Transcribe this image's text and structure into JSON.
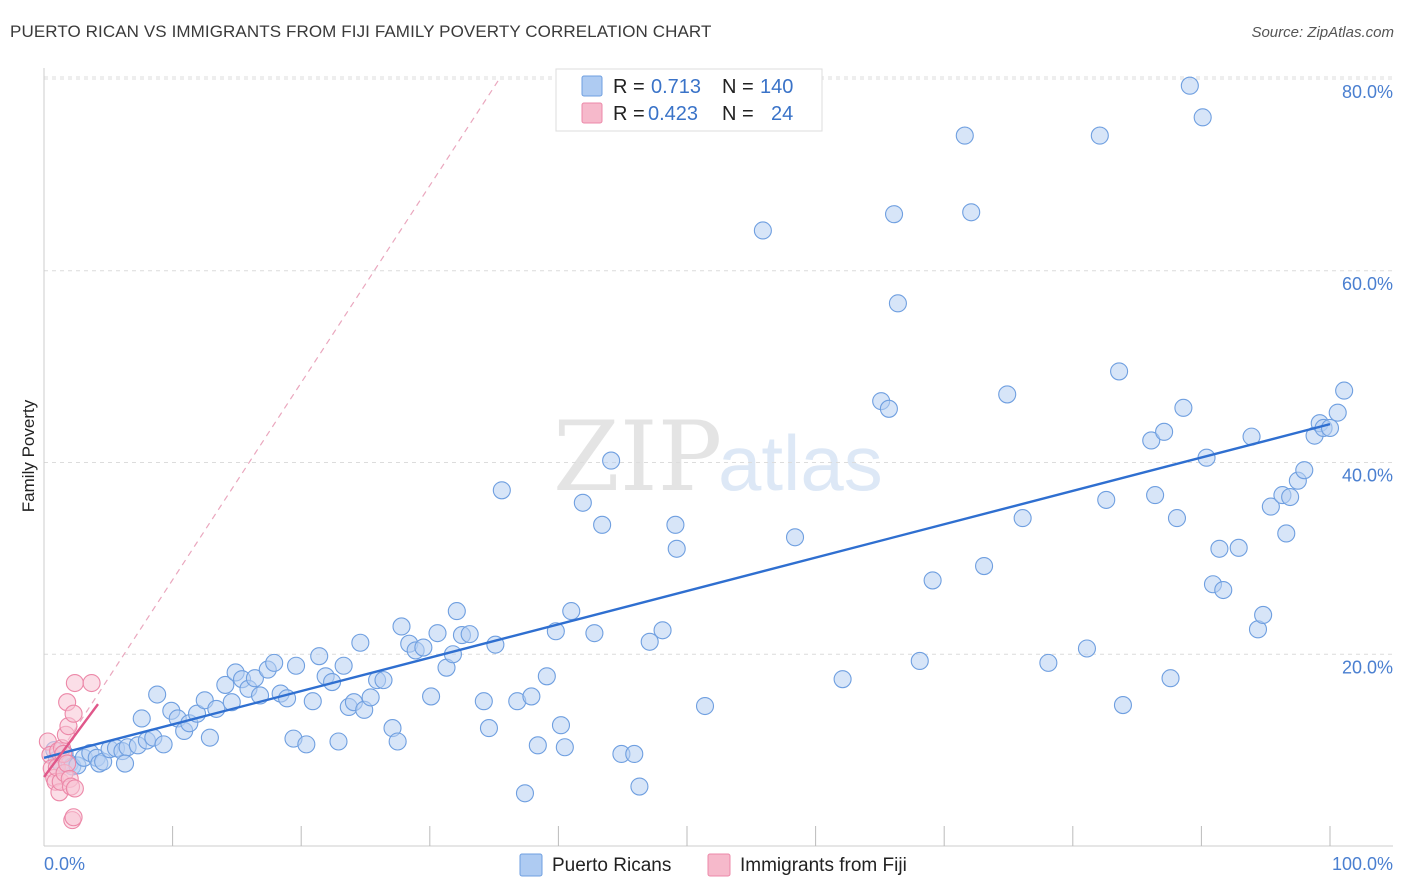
{
  "title": "PUERTO RICAN VS IMMIGRANTS FROM FIJI FAMILY POVERTY CORRELATION CHART",
  "source": "Source: ZipAtlas.com",
  "watermark": {
    "zip": "ZIP",
    "atlas": "atlas"
  },
  "legend_top": [
    {
      "r_label": "R =",
      "r_value": "0.713",
      "n_label": "N =",
      "n_value": "140",
      "color": "#aecbf2"
    },
    {
      "r_label": "R =",
      "r_value": "0.423",
      "n_label": "N =",
      "n_value": "24",
      "color": "#f6b9cb"
    }
  ],
  "chart_data": {
    "type": "scatter",
    "title": "PUERTO RICAN VS IMMIGRANTS FROM FIJI FAMILY POVERTY CORRELATION CHART",
    "xlabel": "",
    "ylabel": "Family Poverty",
    "xlim": [
      0,
      100
    ],
    "ylim": [
      0,
      82
    ],
    "x_tick_labels": [
      "0.0%",
      "100.0%"
    ],
    "y_ticks": [
      20,
      40,
      60,
      80
    ],
    "y_tick_labels": [
      "20.0%",
      "40.0%",
      "60.0%",
      "80.0%"
    ],
    "series": [
      {
        "name": "Puerto Ricans",
        "color": "#6f9fe0",
        "fill": "#b6cff2",
        "line_color": "#2f6fd0",
        "trend": {
          "x0": 0,
          "y0": 9.2,
          "x1": 100,
          "y1": 44.0
        },
        "points": [
          [
            0.8,
            10.0
          ],
          [
            1.0,
            9.0
          ],
          [
            1.3,
            8.6
          ],
          [
            1.6,
            9.6
          ],
          [
            2.0,
            8.6
          ],
          [
            2.2,
            8.3
          ],
          [
            2.6,
            8.4
          ],
          [
            3.1,
            9.2
          ],
          [
            3.6,
            9.7
          ],
          [
            4.1,
            9.2
          ],
          [
            4.3,
            8.6
          ],
          [
            4.6,
            8.8
          ],
          [
            5.1,
            10.1
          ],
          [
            5.6,
            10.2
          ],
          [
            6.1,
            9.9
          ],
          [
            6.5,
            10.3
          ],
          [
            6.3,
            8.6
          ],
          [
            7.3,
            10.5
          ],
          [
            7.6,
            13.3
          ],
          [
            8.0,
            11.0
          ],
          [
            8.5,
            11.3
          ],
          [
            8.8,
            15.8
          ],
          [
            9.3,
            10.6
          ],
          [
            9.9,
            14.1
          ],
          [
            10.4,
            13.3
          ],
          [
            10.9,
            12.0
          ],
          [
            11.3,
            12.8
          ],
          [
            11.9,
            13.8
          ],
          [
            12.5,
            15.2
          ],
          [
            12.9,
            11.3
          ],
          [
            13.4,
            14.3
          ],
          [
            14.1,
            16.8
          ],
          [
            14.6,
            15.0
          ],
          [
            14.9,
            18.1
          ],
          [
            15.4,
            17.4
          ],
          [
            15.9,
            16.4
          ],
          [
            16.4,
            17.5
          ],
          [
            16.8,
            15.7
          ],
          [
            17.4,
            18.4
          ],
          [
            17.9,
            19.1
          ],
          [
            18.4,
            15.9
          ],
          [
            18.9,
            15.4
          ],
          [
            19.4,
            11.2
          ],
          [
            19.6,
            18.8
          ],
          [
            20.4,
            10.6
          ],
          [
            20.9,
            15.1
          ],
          [
            21.4,
            19.8
          ],
          [
            21.9,
            17.7
          ],
          [
            22.4,
            17.1
          ],
          [
            22.9,
            10.9
          ],
          [
            23.3,
            18.8
          ],
          [
            23.7,
            14.5
          ],
          [
            24.1,
            15.0
          ],
          [
            24.6,
            21.2
          ],
          [
            24.9,
            14.2
          ],
          [
            25.4,
            15.5
          ],
          [
            25.9,
            17.3
          ],
          [
            26.4,
            17.3
          ],
          [
            27.1,
            12.3
          ],
          [
            27.5,
            10.9
          ],
          [
            27.8,
            22.9
          ],
          [
            28.4,
            21.1
          ],
          [
            28.9,
            20.4
          ],
          [
            29.5,
            20.7
          ],
          [
            30.1,
            15.6
          ],
          [
            30.6,
            22.2
          ],
          [
            31.3,
            18.6
          ],
          [
            31.8,
            20.0
          ],
          [
            32.1,
            24.5
          ],
          [
            32.5,
            22.0
          ],
          [
            33.1,
            22.1
          ],
          [
            34.2,
            15.1
          ],
          [
            34.6,
            12.3
          ],
          [
            35.1,
            21.0
          ],
          [
            35.6,
            37.1
          ],
          [
            36.8,
            15.1
          ],
          [
            37.4,
            5.5
          ],
          [
            37.9,
            15.6
          ],
          [
            38.4,
            10.5
          ],
          [
            39.1,
            17.7
          ],
          [
            39.8,
            22.4
          ],
          [
            40.2,
            12.6
          ],
          [
            40.5,
            10.3
          ],
          [
            41.0,
            24.5
          ],
          [
            41.9,
            35.8
          ],
          [
            42.8,
            22.2
          ],
          [
            43.4,
            33.5
          ],
          [
            44.1,
            40.2
          ],
          [
            44.9,
            9.6
          ],
          [
            45.9,
            9.6
          ],
          [
            46.3,
            6.2
          ],
          [
            47.1,
            21.3
          ],
          [
            48.1,
            22.5
          ],
          [
            49.1,
            33.5
          ],
          [
            49.2,
            31.0
          ],
          [
            51.4,
            14.6
          ],
          [
            55.9,
            64.2
          ],
          [
            58.4,
            32.2
          ],
          [
            62.1,
            17.4
          ],
          [
            65.1,
            46.4
          ],
          [
            65.7,
            45.6
          ],
          [
            66.1,
            65.9
          ],
          [
            66.4,
            56.6
          ],
          [
            68.1,
            19.3
          ],
          [
            69.1,
            27.7
          ],
          [
            71.6,
            74.1
          ],
          [
            72.1,
            66.1
          ],
          [
            73.1,
            29.2
          ],
          [
            74.9,
            47.1
          ],
          [
            76.1,
            34.2
          ],
          [
            78.1,
            19.1
          ],
          [
            81.1,
            20.6
          ],
          [
            82.1,
            74.1
          ],
          [
            82.6,
            36.1
          ],
          [
            83.6,
            49.5
          ],
          [
            83.9,
            14.7
          ],
          [
            86.1,
            42.3
          ],
          [
            86.4,
            36.6
          ],
          [
            87.1,
            43.2
          ],
          [
            87.6,
            17.5
          ],
          [
            88.1,
            34.2
          ],
          [
            88.6,
            45.7
          ],
          [
            89.1,
            79.3
          ],
          [
            90.1,
            76.0
          ],
          [
            90.4,
            40.5
          ],
          [
            90.9,
            27.3
          ],
          [
            91.4,
            31.0
          ],
          [
            91.7,
            26.7
          ],
          [
            92.9,
            31.1
          ],
          [
            93.9,
            42.7
          ],
          [
            94.4,
            22.6
          ],
          [
            94.8,
            24.1
          ],
          [
            95.4,
            35.4
          ],
          [
            96.3,
            36.6
          ],
          [
            96.6,
            32.6
          ],
          [
            96.9,
            36.4
          ],
          [
            97.5,
            38.1
          ],
          [
            98.0,
            39.2
          ],
          [
            98.8,
            42.8
          ],
          [
            99.2,
            44.1
          ],
          [
            99.5,
            43.6
          ],
          [
            100.0,
            43.6
          ],
          [
            100.6,
            45.2
          ],
          [
            101.1,
            47.5
          ]
        ]
      },
      {
        "name": "Immigrants from Fiji",
        "color": "#ec88a8",
        "fill": "#f8c3d3",
        "line_color": "#e0578a",
        "trend": {
          "x0": 0,
          "y0": 7.2,
          "x1": 4.2,
          "y1": 14.8
        },
        "trend_extended": {
          "x0": 0,
          "y0": 7.2,
          "x1": 35.5,
          "y1": 80.2
        },
        "points": [
          [
            0.3,
            10.9
          ],
          [
            0.5,
            9.5
          ],
          [
            0.6,
            8.1
          ],
          [
            0.8,
            7.1
          ],
          [
            0.9,
            6.7
          ],
          [
            1.0,
            8.2
          ],
          [
            1.1,
            9.9
          ],
          [
            1.2,
            5.6
          ],
          [
            1.3,
            6.7
          ],
          [
            1.4,
            10.2
          ],
          [
            1.5,
            9.6
          ],
          [
            1.6,
            7.6
          ],
          [
            1.7,
            11.6
          ],
          [
            1.8,
            8.6
          ],
          [
            1.8,
            15.0
          ],
          [
            1.9,
            12.5
          ],
          [
            2.0,
            7.0
          ],
          [
            2.1,
            6.2
          ],
          [
            2.2,
            2.7
          ],
          [
            2.3,
            3.0
          ],
          [
            2.3,
            13.8
          ],
          [
            2.4,
            6.0
          ],
          [
            2.4,
            17.0
          ],
          [
            3.7,
            17.0
          ]
        ]
      }
    ]
  },
  "bottom_legend": [
    {
      "label": "Puerto Ricans",
      "color": "#aecbf2"
    },
    {
      "label": "Immigrants from Fiji",
      "color": "#f6b9cb"
    }
  ]
}
